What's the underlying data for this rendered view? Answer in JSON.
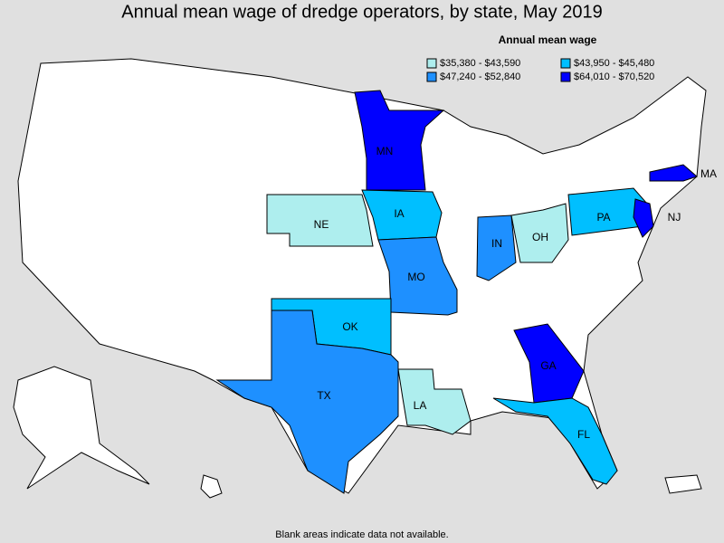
{
  "title": "Annual mean wage of dredge operators, by state, May 2019",
  "legend": {
    "title": "Annual mean wage",
    "items": [
      {
        "label": "$35,380 - $43,590",
        "color": "#aeeeee"
      },
      {
        "label": "$43,950 - $45,480",
        "color": "#00bfff"
      },
      {
        "label": "$47,240 - $52,840",
        "color": "#1e90ff"
      },
      {
        "label": "$64,010 - $70,520",
        "color": "#0000ff"
      }
    ]
  },
  "states": [
    {
      "label": "MN",
      "color": "#0000ff"
    },
    {
      "label": "NE",
      "color": "#aeeeee"
    },
    {
      "label": "IA",
      "color": "#00bfff"
    },
    {
      "label": "MO",
      "color": "#1e90ff"
    },
    {
      "label": "IN",
      "color": "#1e90ff"
    },
    {
      "label": "OH",
      "color": "#aeeeee"
    },
    {
      "label": "PA",
      "color": "#00bfff"
    },
    {
      "label": "NJ",
      "color": "#0000ff"
    },
    {
      "label": "MA",
      "color": "#0000ff"
    },
    {
      "label": "OK",
      "color": "#00bfff"
    },
    {
      "label": "TX",
      "color": "#1e90ff"
    },
    {
      "label": "LA",
      "color": "#aeeeee"
    },
    {
      "label": "GA",
      "color": "#0000ff"
    },
    {
      "label": "FL",
      "color": "#00bfff"
    }
  ],
  "footnote": "Blank areas indicate data not available."
}
